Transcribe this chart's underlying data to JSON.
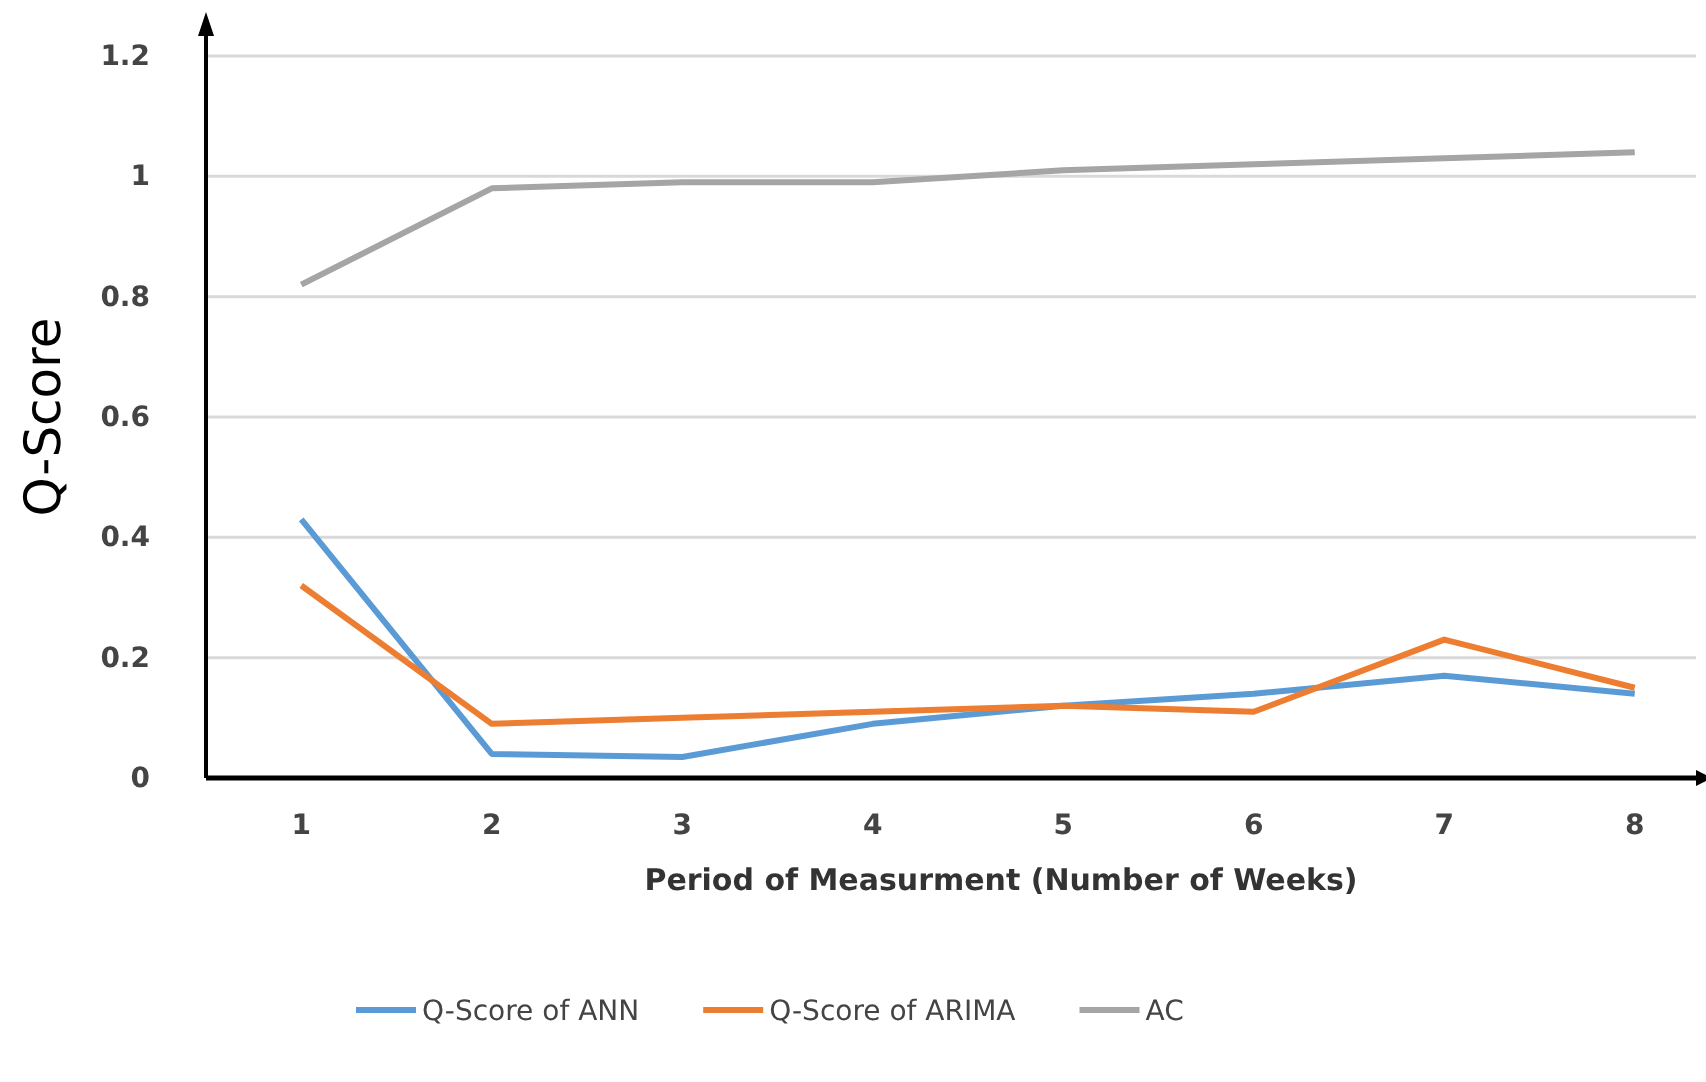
{
  "chart_data": {
    "type": "line",
    "xlabel": "Period of Measurment (Number of Weeks)",
    "ylabel": "Q-Score",
    "categories": [
      "1",
      "2",
      "3",
      "4",
      "5",
      "6",
      "7",
      "8"
    ],
    "series": [
      {
        "name": "Q-Score of ANN",
        "color": "#5b9bd5",
        "values": [
          0.43,
          0.04,
          0.035,
          0.09,
          0.12,
          0.14,
          0.17,
          0.14
        ]
      },
      {
        "name": "Q-Score of ARIMA",
        "color": "#ed7d31",
        "values": [
          0.32,
          0.09,
          0.1,
          0.11,
          0.12,
          0.11,
          0.23,
          0.15
        ]
      },
      {
        "name": "AC",
        "color": "#a5a5a5",
        "values": [
          0.82,
          0.98,
          0.99,
          0.99,
          1.01,
          1.02,
          1.03,
          1.04
        ]
      }
    ],
    "ylim": [
      0,
      1.2
    ],
    "yticks": [
      0,
      0.2,
      0.4,
      0.6,
      0.8,
      1,
      1.2
    ],
    "grid": "y",
    "legend": "bottom",
    "marker": "none",
    "line_style": "solid"
  }
}
